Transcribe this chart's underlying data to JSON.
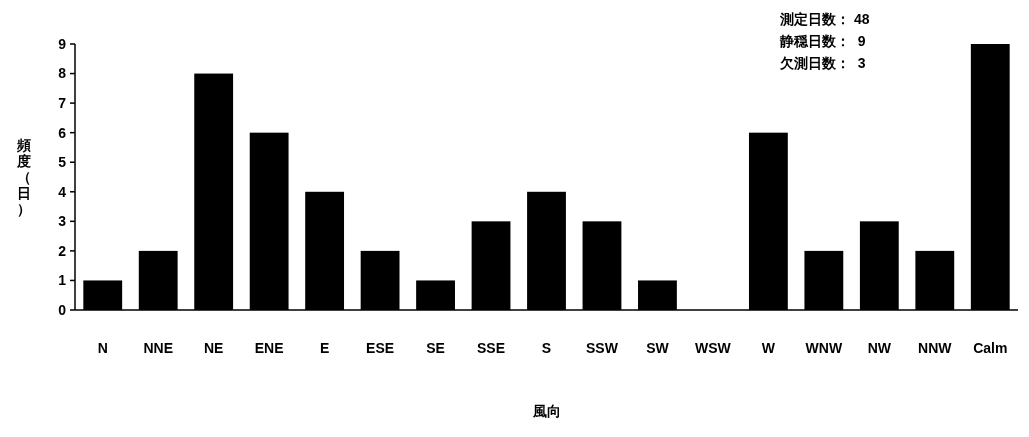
{
  "chart_data": {
    "type": "bar",
    "xlabel": "風向",
    "ylabel": "頻度（日）",
    "categories": [
      "N",
      "NNE",
      "NE",
      "ENE",
      "E",
      "ESE",
      "SE",
      "SSE",
      "S",
      "SSW",
      "SW",
      "WSW",
      "W",
      "WNW",
      "NW",
      "NNW",
      "Calm"
    ],
    "values": [
      1,
      2,
      8,
      6,
      4,
      2,
      1,
      3,
      4,
      3,
      1,
      0,
      6,
      2,
      3,
      2,
      9
    ],
    "color": "#000000",
    "ylim": [
      0,
      9
    ],
    "yticks": [
      0,
      1,
      2,
      3,
      4,
      5,
      6,
      7,
      8,
      9
    ],
    "grid": false,
    "annotations": [
      "測定日数： 48",
      "静穏日数：  9",
      "欠測日数：  3"
    ]
  }
}
